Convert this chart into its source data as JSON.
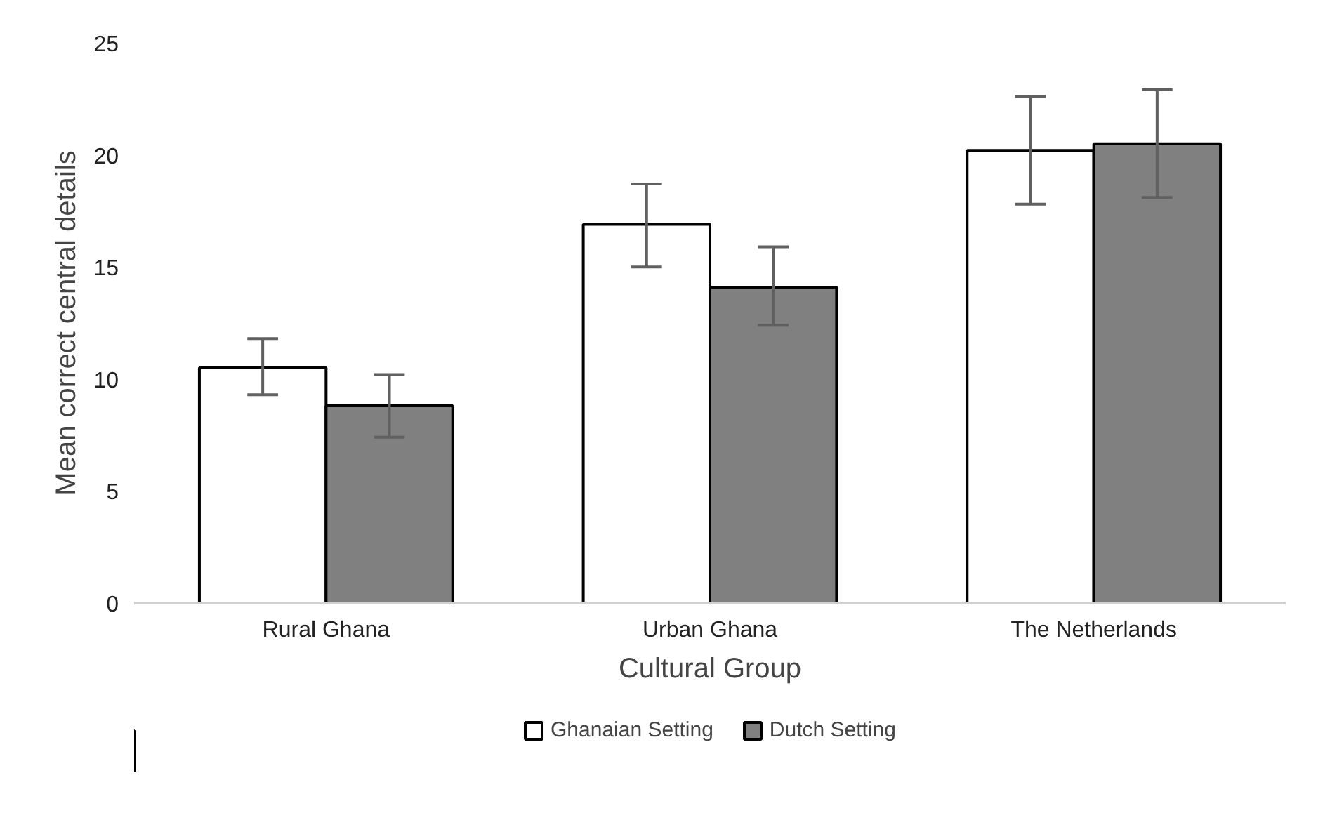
{
  "chart_data": {
    "type": "bar",
    "xlabel": "Cultural Group",
    "ylabel": "Mean correct central details",
    "categories": [
      "Rural Ghana",
      "Urban Ghana",
      "The Netherlands"
    ],
    "series": [
      {
        "name": "Ghanaian Setting",
        "color": "#ffffff",
        "values": [
          10.5,
          16.9,
          20.2
        ],
        "errors": [
          [
            9.3,
            11.8
          ],
          [
            15.0,
            18.7
          ],
          [
            17.8,
            22.6
          ]
        ]
      },
      {
        "name": "Dutch Setting",
        "color": "#808080",
        "values": [
          8.8,
          14.1,
          20.5
        ],
        "errors": [
          [
            7.4,
            10.2
          ],
          [
            12.4,
            15.9
          ],
          [
            18.1,
            22.9
          ]
        ]
      }
    ],
    "ylim": [
      0,
      25
    ],
    "yticks": [
      0,
      5,
      10,
      15,
      20,
      25
    ],
    "grid": false,
    "legend": "bottom"
  }
}
